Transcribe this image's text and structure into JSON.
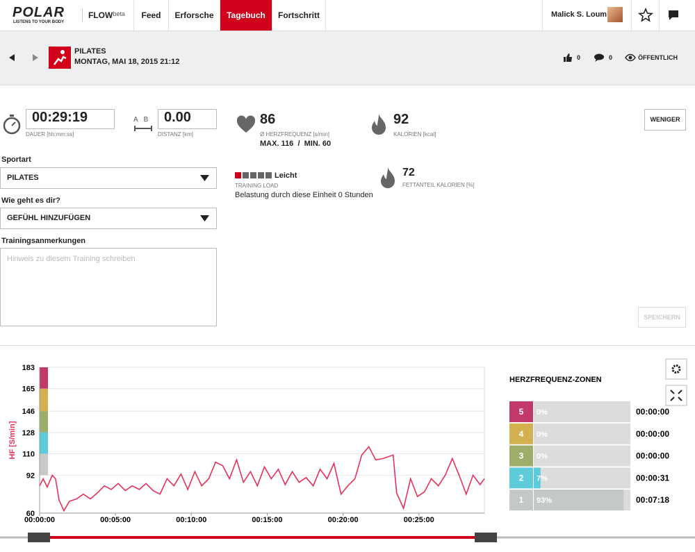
{
  "nav": {
    "logo": "POLAR",
    "tagline": "LISTENS TO YOUR BODY",
    "product": "FLOW",
    "product_tag": "beta",
    "items": [
      {
        "label": "Feed",
        "active": false
      },
      {
        "label": "Erforsche",
        "active": false
      },
      {
        "label": "Tagebuch",
        "active": true
      },
      {
        "label": "Fortschritt",
        "active": false
      }
    ],
    "user": "Malick S. Loum"
  },
  "session": {
    "sport": "PILATES",
    "date": "MONTAG, MAI 18, 2015 21:12",
    "likes": 0,
    "comments": 0,
    "visibility": "ÖFFENTLICH"
  },
  "stats": {
    "duration": {
      "value": "00:29:19",
      "label": "DAUER [hh:mm:ss]"
    },
    "distance": {
      "icon": [
        "A",
        "B"
      ],
      "value": "0.00",
      "label": "DISTANZ [km]"
    },
    "heart_rate": {
      "value": 86,
      "label": "Ø HERZFREQUENZ [s/min]",
      "max": "MAX. 116",
      "separator": "/",
      "min": "MIN. 60"
    },
    "calories": {
      "value": 92,
      "label": "KALORIEN [kcal]"
    },
    "toggle": "WENIGER",
    "training_load": {
      "level": 1,
      "steps": 5,
      "text": "Leicht",
      "label": "TRAINING LOAD",
      "note": "Belastung durch diese Einheit 0 Stunden"
    },
    "fat": {
      "value": 72,
      "label": "FETTANTEIL KALORIEN [%]"
    }
  },
  "form": {
    "sport_label": "Sportart",
    "sport_value": "PILATES",
    "feeling_label": "Wie geht es dir?",
    "feeling_value": "GEFÜHL HINZUFÜGEN",
    "notes_label": "Trainingsanmerkungen",
    "notes_placeholder": "Hinweis zu diesem Training schreiben",
    "save": "SPEICHERN"
  },
  "chart_data": [
    {
      "type": "line",
      "y_label": "HF [S/min]",
      "color": "#e8305a",
      "x": [
        0,
        14,
        30,
        50,
        63,
        77,
        96,
        118,
        146,
        173,
        201,
        228,
        256,
        283,
        311,
        339,
        366,
        394,
        421,
        449,
        476,
        504,
        531,
        559,
        586,
        614,
        641,
        669,
        696,
        724,
        751,
        779,
        806,
        834,
        861,
        889,
        916,
        944,
        971,
        999,
        1026,
        1054,
        1082,
        1109,
        1137,
        1164,
        1192,
        1219,
        1247,
        1274,
        1302,
        1329,
        1357,
        1398,
        1412,
        1439,
        1467,
        1494,
        1522,
        1549,
        1577,
        1604,
        1632,
        1659,
        1687,
        1714,
        1742,
        1759
      ],
      "values": [
        83,
        89,
        82,
        92,
        89,
        71,
        62,
        70,
        72,
        76,
        72,
        77,
        83,
        80,
        85,
        79,
        83,
        80,
        85,
        79,
        76,
        89,
        83,
        93,
        80,
        95,
        83,
        89,
        103,
        100,
        89,
        105,
        86,
        95,
        83,
        99,
        89,
        97,
        84,
        95,
        86,
        90,
        83,
        97,
        89,
        102,
        76,
        83,
        89,
        109,
        116,
        105,
        106,
        109,
        77,
        64,
        89,
        74,
        78,
        89,
        83,
        92,
        106,
        92,
        76,
        92,
        84,
        89
      ],
      "xlim": [
        0,
        1759
      ],
      "xticks": [
        {
          "value": 0,
          "label": "00:00:00"
        },
        {
          "value": 300,
          "label": "00:05:00"
        },
        {
          "value": 600,
          "label": "00:10:00"
        },
        {
          "value": 900,
          "label": "00:15:00"
        },
        {
          "value": 1200,
          "label": "00:20:00"
        },
        {
          "value": 1500,
          "label": "00:25:00"
        }
      ],
      "ylim": [
        60,
        183
      ],
      "yticks": [
        60,
        92,
        110,
        128,
        146,
        165,
        183
      ],
      "grid": true,
      "zone_bands": [
        {
          "from": 165,
          "to": 183,
          "color": "#c2396b"
        },
        {
          "from": 146,
          "to": 165,
          "color": "#d3b04f"
        },
        {
          "from": 128,
          "to": 146,
          "color": "#9dae6b"
        },
        {
          "from": 110,
          "to": 128,
          "color": "#5ecbdb"
        },
        {
          "from": 92,
          "to": 110,
          "color": "#c9c9c9"
        }
      ]
    },
    {
      "type": "bar",
      "title": "HERZFREQUENZ-ZONEN",
      "categories": [
        "5",
        "4",
        "3",
        "2",
        "1"
      ],
      "values": [
        0,
        0,
        0,
        7,
        93
      ],
      "value_labels": [
        "0%",
        "0%",
        "0%",
        "7%",
        "93%"
      ],
      "durations": [
        "00:00:00",
        "00:00:00",
        "00:00:00",
        "00:00:31",
        "00:07:18"
      ],
      "colors": [
        "#c2396b",
        "#d3b04f",
        "#9dae6b",
        "#5ecbdb",
        "#c4c8c8"
      ],
      "xlim": [
        0,
        100
      ]
    }
  ]
}
